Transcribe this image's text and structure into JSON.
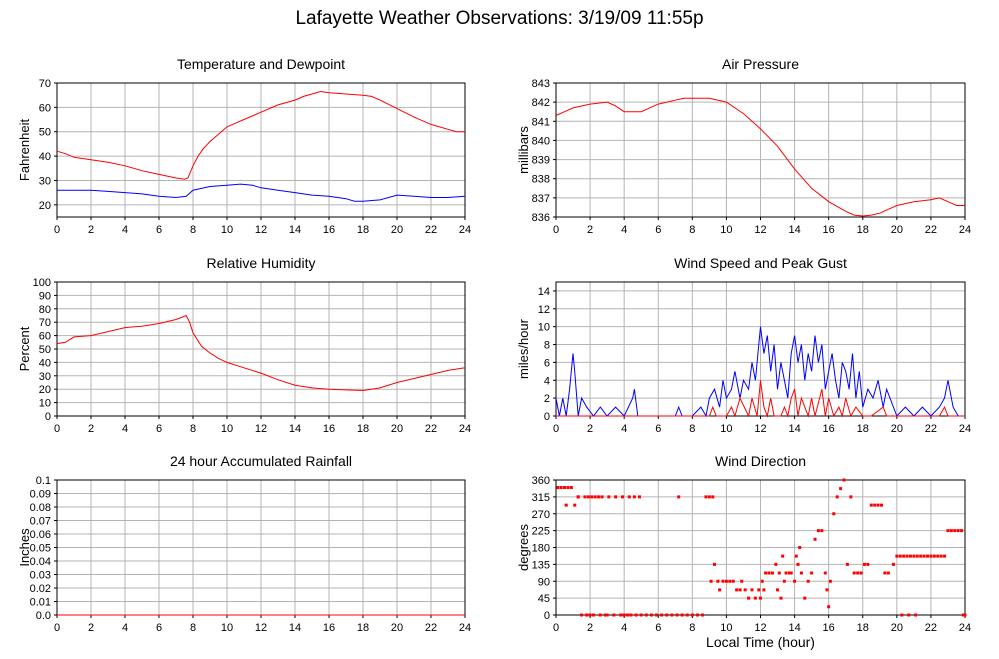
{
  "page": {
    "title": "Lafayette Weather Observations: 3/19/09 11:55p",
    "xlabel": "Local Time (hour)"
  },
  "colors": {
    "red": "#ff0000",
    "blue": "#0000ff",
    "grid": "#b4b4b4"
  },
  "chart_data": [
    {
      "id": "temp",
      "type": "line",
      "title": "Temperature and Dewpoint",
      "ylabel": "Fahrenheit",
      "xlim": [
        0,
        24
      ],
      "ylim": [
        15,
        70
      ],
      "xticks": [
        0,
        2,
        4,
        6,
        8,
        10,
        12,
        14,
        16,
        18,
        20,
        22,
        24
      ],
      "yticks": [
        20,
        30,
        40,
        50,
        60,
        70
      ],
      "grid": true,
      "series": [
        {
          "color": "#ff0000",
          "x": [
            0,
            0.5,
            1,
            2,
            3,
            4,
            5,
            6,
            7,
            7.5,
            7.7,
            8,
            8.3,
            8.6,
            9,
            9.5,
            10,
            10.5,
            11,
            12,
            13,
            14,
            14.5,
            15,
            15.5,
            16,
            17,
            18,
            18.5,
            19,
            20,
            21,
            22,
            23,
            23.5,
            24
          ],
          "y": [
            42,
            41,
            39.5,
            38.5,
            37.5,
            36,
            34,
            32.5,
            31,
            30.5,
            31,
            36,
            40,
            43,
            46,
            49,
            52,
            53.5,
            55,
            58,
            61,
            63,
            64.5,
            65.5,
            66.5,
            66,
            65.5,
            65,
            64.5,
            63,
            59.5,
            56,
            53,
            51,
            50,
            50
          ]
        },
        {
          "color": "#0000ff",
          "x": [
            0,
            1,
            2,
            3,
            4,
            5,
            6,
            7,
            7.6,
            8,
            9,
            10,
            10.8,
            11.5,
            12,
            13,
            14,
            15,
            16,
            17,
            17.5,
            18,
            19,
            20,
            21,
            22,
            23,
            24
          ],
          "y": [
            26,
            26,
            26,
            25.5,
            25,
            24.5,
            23.5,
            23,
            23.5,
            26,
            27.5,
            28,
            28.5,
            28,
            27,
            26,
            25,
            24,
            23.5,
            22.5,
            21.5,
            21.5,
            22,
            24,
            23.5,
            23,
            23,
            23.5
          ]
        }
      ]
    },
    {
      "id": "pressure",
      "type": "line",
      "title": "Air Pressure",
      "ylabel": "millibars",
      "xlim": [
        0,
        24
      ],
      "ylim": [
        836,
        843
      ],
      "xticks": [
        0,
        2,
        4,
        6,
        8,
        10,
        12,
        14,
        16,
        18,
        20,
        22,
        24
      ],
      "yticks": [
        836,
        837,
        838,
        839,
        840,
        841,
        842,
        843
      ],
      "grid": true,
      "series": [
        {
          "color": "#ff0000",
          "x": [
            0,
            0.5,
            1,
            2,
            3,
            3.5,
            4,
            5,
            6,
            7,
            7.5,
            8,
            9,
            10,
            11,
            12,
            13,
            14,
            15,
            16,
            17,
            17.5,
            18,
            18.5,
            19,
            19.5,
            20,
            21,
            22,
            22.5,
            23,
            23.5,
            24
          ],
          "y": [
            841.3,
            841.5,
            841.7,
            841.9,
            842.0,
            841.8,
            841.5,
            841.5,
            841.9,
            842.1,
            842.2,
            842.2,
            842.2,
            842.0,
            841.4,
            840.6,
            839.7,
            838.5,
            837.5,
            836.8,
            836.3,
            836.1,
            836.05,
            836.1,
            836.2,
            836.4,
            836.6,
            836.8,
            836.9,
            837.0,
            836.8,
            836.6,
            836.6
          ]
        }
      ]
    },
    {
      "id": "humidity",
      "type": "line",
      "title": "Relative Humidity",
      "ylabel": "Percent",
      "xlim": [
        0,
        24
      ],
      "ylim": [
        0,
        100
      ],
      "xticks": [
        0,
        2,
        4,
        6,
        8,
        10,
        12,
        14,
        16,
        18,
        20,
        22,
        24
      ],
      "yticks": [
        0,
        10,
        20,
        30,
        40,
        50,
        60,
        70,
        80,
        90,
        100
      ],
      "grid": true,
      "series": [
        {
          "color": "#ff0000",
          "x": [
            0,
            0.5,
            1,
            2,
            3,
            4,
            5,
            6,
            7,
            7.6,
            7.8,
            8,
            8.5,
            9,
            9.5,
            10,
            11,
            12,
            13,
            14,
            15,
            16,
            17,
            18,
            19,
            20,
            21,
            22,
            23,
            24
          ],
          "y": [
            54,
            55,
            59,
            60,
            63,
            66,
            67,
            69,
            72,
            75,
            70,
            62,
            52,
            47,
            43,
            40,
            36,
            32,
            27,
            23,
            21,
            20,
            19.5,
            19,
            21,
            25,
            28,
            31,
            34,
            36
          ]
        }
      ]
    },
    {
      "id": "wind",
      "type": "line",
      "title": "Wind Speed and Peak Gust",
      "ylabel": "miles/hour",
      "xlim": [
        0,
        24
      ],
      "ylim": [
        0,
        15
      ],
      "xticks": [
        0,
        2,
        4,
        6,
        8,
        10,
        12,
        14,
        16,
        18,
        20,
        22,
        24
      ],
      "yticks": [
        0,
        2,
        4,
        6,
        8,
        10,
        12,
        14
      ],
      "grid": true,
      "series": [
        {
          "color": "#0000ff",
          "x": [
            0,
            0.2,
            0.4,
            0.6,
            0.8,
            1.0,
            1.1,
            1.3,
            1.5,
            1.8,
            2.2,
            2.6,
            3.0,
            3.5,
            4.0,
            4.5,
            4.6,
            4.8,
            5.2,
            6,
            7.0,
            7.2,
            7.4,
            8,
            8.5,
            8.8,
            9.0,
            9.3,
            9.6,
            9.8,
            10.0,
            10.3,
            10.5,
            10.8,
            11.0,
            11.3,
            11.5,
            11.7,
            11.9,
            12.0,
            12.2,
            12.4,
            12.6,
            12.8,
            13.0,
            13.2,
            13.4,
            13.6,
            13.8,
            14.0,
            14.2,
            14.4,
            14.6,
            14.8,
            15.0,
            15.2,
            15.4,
            15.6,
            15.8,
            16.0,
            16.2,
            16.4,
            16.6,
            16.8,
            17.0,
            17.2,
            17.4,
            17.6,
            17.8,
            18.0,
            18.3,
            18.6,
            18.9,
            19.2,
            19.4,
            19.6,
            20.0,
            20.5,
            21.0,
            21.5,
            22.0,
            22.5,
            22.8,
            23.0,
            23.3,
            23.6,
            24
          ],
          "y": [
            2,
            0,
            2,
            0,
            3,
            7,
            5,
            0,
            2,
            1,
            0,
            1,
            0,
            1,
            0,
            2,
            3,
            0,
            0,
            0,
            0,
            1,
            0,
            0,
            1,
            0,
            2,
            3,
            1,
            4,
            2,
            3,
            5,
            2,
            4,
            3,
            6,
            4,
            8,
            10,
            7,
            9,
            5,
            8,
            3,
            6,
            4,
            2,
            7,
            9,
            6,
            8,
            4,
            7,
            5,
            9,
            6,
            8,
            3,
            5,
            7,
            4,
            2,
            6,
            5,
            3,
            7,
            2,
            5,
            1,
            3,
            2,
            4,
            1,
            3,
            2,
            0,
            1,
            0,
            1,
            0,
            1,
            2,
            4,
            1,
            0,
            0
          ]
        },
        {
          "color": "#ff0000",
          "x": [
            0,
            8.5,
            9.0,
            9.2,
            9.4,
            10.0,
            10.3,
            10.5,
            10.8,
            11.3,
            11.5,
            11.8,
            12.0,
            12.2,
            12.4,
            12.6,
            12.8,
            13.2,
            13.4,
            13.6,
            13.8,
            14.0,
            14.2,
            14.4,
            14.6,
            14.8,
            15.0,
            15.2,
            15.6,
            15.8,
            16.0,
            16.3,
            16.6,
            16.8,
            17.0,
            17.3,
            17.6,
            18.0,
            18.5,
            19.2,
            19.4,
            19.6,
            22.5,
            22.8,
            23.0,
            23.2,
            24
          ],
          "y": [
            0,
            0,
            0,
            1,
            0,
            0,
            1,
            0,
            2,
            0,
            2,
            0,
            4,
            1,
            0,
            2,
            0,
            0,
            1,
            0,
            2,
            3,
            0,
            2,
            1,
            0,
            2,
            0,
            3,
            0,
            2,
            0,
            1,
            0,
            2,
            0,
            1,
            0,
            0,
            1,
            0,
            0,
            0,
            1,
            0,
            0,
            0
          ]
        }
      ]
    },
    {
      "id": "rain",
      "type": "line",
      "title": "24 hour Accumulated Rainfall",
      "ylabel": "Inches",
      "xlim": [
        0,
        24
      ],
      "ylim": [
        0,
        0.1
      ],
      "xticks": [
        0,
        2,
        4,
        6,
        8,
        10,
        12,
        14,
        16,
        18,
        20,
        22,
        24
      ],
      "yticks": [
        0.0,
        0.01,
        0.02,
        0.03,
        0.04,
        0.05,
        0.06,
        0.07,
        0.08,
        0.09,
        0.1
      ],
      "ytick_labels": [
        "0.0",
        "0.01",
        "0.02",
        "0.03",
        "0.04",
        "0.05",
        "0.06",
        "0.07",
        "0.08",
        "0.09",
        "0.1"
      ],
      "grid": true,
      "series": [
        {
          "color": "#ff0000",
          "x": [
            0,
            24
          ],
          "y": [
            0,
            0
          ]
        }
      ]
    },
    {
      "id": "direction",
      "type": "scatter",
      "title": "Wind Direction",
      "ylabel": "degrees",
      "xlim": [
        0,
        24
      ],
      "ylim": [
        0,
        360
      ],
      "xticks": [
        0,
        2,
        4,
        6,
        8,
        10,
        12,
        14,
        16,
        18,
        20,
        22,
        24
      ],
      "yticks": [
        0,
        45,
        90,
        135,
        180,
        225,
        270,
        315,
        360
      ],
      "grid": true,
      "series": [
        {
          "color": "#ff0000",
          "x": [
            0.1,
            0.3,
            0.5,
            0.7,
            0.9,
            0.6,
            1.1,
            1.3,
            1.5,
            1.3,
            1.7,
            1.9,
            2.1,
            2.3,
            2.5,
            2.7,
            2.9,
            3.1,
            3.5,
            3.9,
            4.3,
            4.6,
            4.9,
            4.0,
            4.4,
            2.0,
            1.8,
            2.2,
            2.6,
            3.0,
            3.4,
            3.8,
            4.2,
            4.7,
            5.0,
            5.3,
            5.6,
            5.9,
            6.2,
            6.5,
            6.8,
            7.1,
            7.4,
            7.7,
            8.0,
            8.3,
            8.6,
            7.2,
            8.8,
            9.0,
            9.2,
            9.1,
            9.3,
            9.5,
            9.6,
            9.8,
            10.0,
            10.2,
            10.4,
            10.6,
            10.8,
            10.9,
            11.1,
            11.3,
            11.5,
            11.7,
            11.9,
            12.1,
            12.3,
            12.0,
            12.2,
            12.5,
            12.7,
            12.9,
            13.1,
            13.3,
            13.5,
            13.7,
            13.0,
            13.2,
            13.4,
            13.8,
            14.0,
            14.2,
            14.4,
            14.6,
            14.1,
            14.3,
            14.8,
            15.0,
            15.2,
            15.4,
            15.6,
            15.8,
            15.9,
            16.0,
            16.1,
            16.3,
            16.5,
            16.7,
            16.9,
            17.1,
            17.3,
            17.5,
            17.7,
            17.9,
            18.1,
            18.3,
            18.5,
            18.7,
            18.9,
            19.1,
            19.3,
            19.5,
            19.8,
            20.0,
            20.2,
            20.4,
            20.6,
            20.8,
            21.0,
            21.2,
            21.4,
            21.6,
            21.8,
            22.0,
            22.2,
            22.4,
            22.6,
            22.8,
            23.0,
            23.2,
            23.4,
            23.6,
            23.8,
            20.3,
            20.7,
            21.1,
            23.9,
            24.0
          ],
          "y": [
            340,
            340,
            340,
            340,
            340,
            293,
            293,
            315,
            0,
            315,
            315,
            315,
            315,
            315,
            315,
            315,
            0,
            315,
            315,
            315,
            315,
            315,
            315,
            0,
            0,
            0,
            0,
            0,
            0,
            0,
            0,
            0,
            0,
            0,
            0,
            0,
            0,
            0,
            0,
            0,
            0,
            0,
            0,
            0,
            0,
            0,
            0,
            315,
            315,
            315,
            315,
            90,
            135,
            90,
            67,
            90,
            90,
            90,
            90,
            67,
            67,
            90,
            67,
            45,
            67,
            45,
            67,
            90,
            112,
            45,
            67,
            112,
            112,
            135,
            112,
            157,
            112,
            112,
            67,
            45,
            90,
            112,
            90,
            135,
            112,
            45,
            157,
            180,
            90,
            112,
            202,
            225,
            225,
            112,
            67,
            22,
            90,
            270,
            315,
            337,
            360,
            135,
            315,
            112,
            112,
            112,
            135,
            135,
            293,
            293,
            293,
            293,
            112,
            112,
            135,
            157,
            157,
            157,
            157,
            157,
            157,
            157,
            157,
            157,
            157,
            157,
            157,
            157,
            157,
            157,
            225,
            225,
            225,
            225,
            225,
            0,
            0,
            0,
            0,
            0
          ]
        }
      ]
    }
  ]
}
